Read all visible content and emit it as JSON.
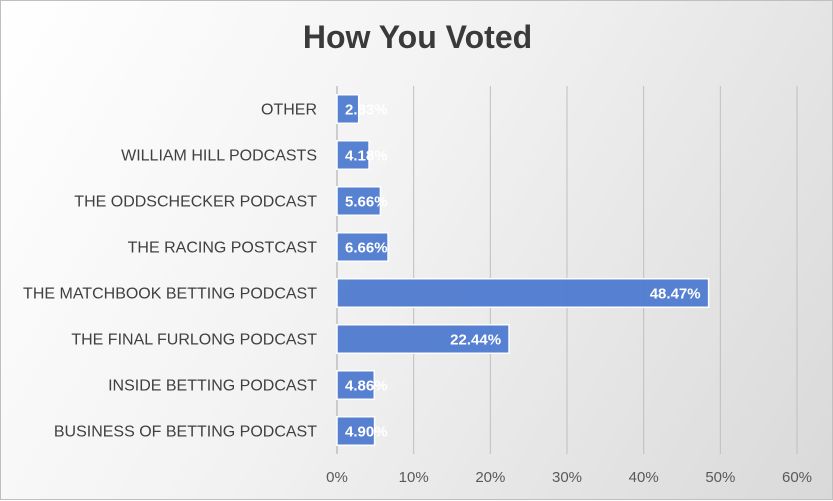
{
  "chart_data": {
    "type": "bar",
    "orientation": "horizontal",
    "title": "How You Voted",
    "categories": [
      "OTHER",
      "WILLIAM HILL PODCASTS",
      "THE ODDSCHECKER PODCAST",
      "THE RACING POSTCAST",
      "THE MATCHBOOK BETTING PODCAST",
      "THE FINAL FURLONG PODCAST",
      "INSIDE BETTING PODCAST",
      "BUSINESS OF BETTING PODCAST"
    ],
    "values": [
      2.83,
      4.18,
      5.66,
      6.66,
      48.47,
      22.44,
      4.86,
      4.9
    ],
    "data_labels": [
      "2.83%",
      "4.18%",
      "5.66%",
      "6.66%",
      "48.47%",
      "22.44%",
      "4.86%",
      "4.90%"
    ],
    "xlim": [
      0,
      60
    ],
    "ticks": [
      0,
      10,
      20,
      30,
      40,
      50,
      60
    ],
    "tick_labels": [
      "0%",
      "10%",
      "20%",
      "30%",
      "40%",
      "50%",
      "60%"
    ],
    "grid": true,
    "bar_color": "#4f7bd0"
  }
}
